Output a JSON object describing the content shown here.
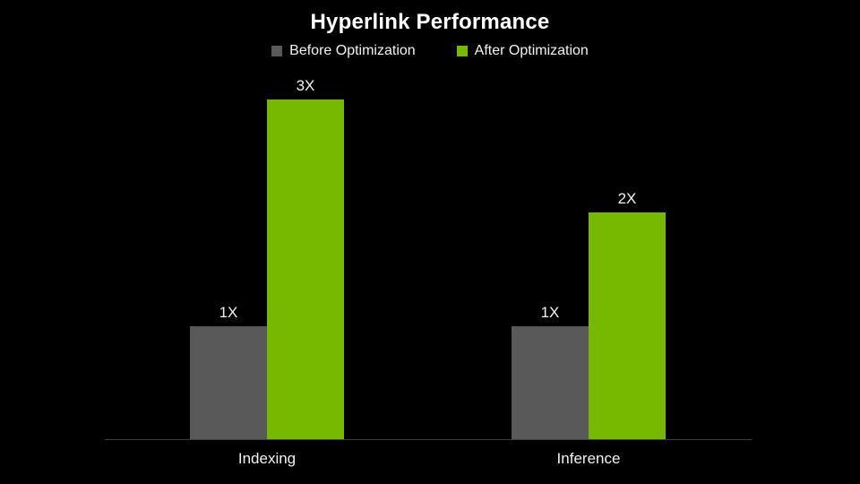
{
  "chart_data": {
    "type": "bar",
    "title": "Hyperlink Performance",
    "categories": [
      "Indexing",
      "Inference"
    ],
    "series": [
      {
        "name": "Before Optimization",
        "color": "#595959",
        "values": [
          1,
          1
        ],
        "labels": [
          "1X",
          "1X"
        ]
      },
      {
        "name": "After Optimization",
        "color": "#76B900",
        "values": [
          3,
          2
        ],
        "labels": [
          "3X",
          "2X"
        ]
      }
    ],
    "ylim": [
      0,
      3
    ],
    "unit_suffix": "X",
    "grid": false,
    "legend_position": "top",
    "background_color": "#000000",
    "axis_line_color": "#3f3f3f",
    "text_color": "#f2f2f2"
  }
}
